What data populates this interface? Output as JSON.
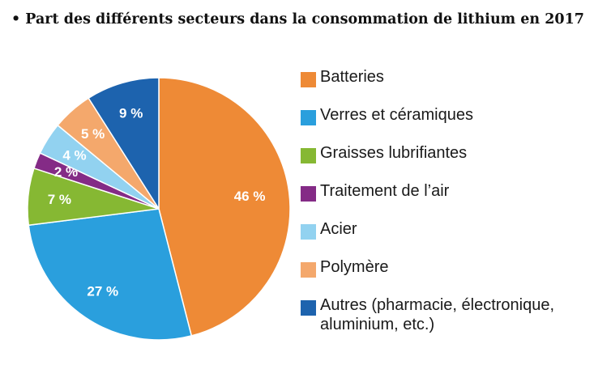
{
  "title": "• Part des différents secteurs dans la consommation de lithium en 2017",
  "chart_data": {
    "type": "pie",
    "title": "• Part des différents secteurs dans la consommation de lithium en 2017",
    "unit": "%",
    "legend_position": "right",
    "slices": [
      {
        "name": "Batteries",
        "value": 46,
        "label": "46 %",
        "color": "#EE8A36"
      },
      {
        "name": "Verres et céramiques",
        "value": 27,
        "label": "27 %",
        "color": "#2A9FDD"
      },
      {
        "name": "Graisses lubrifiantes",
        "value": 7,
        "label": "7 %",
        "color": "#86B833"
      },
      {
        "name": "Traitement de l’air",
        "value": 2,
        "label": "2 %",
        "color": "#842B86"
      },
      {
        "name": "Acier",
        "value": 4,
        "label": "4 %",
        "color": "#92D2F0"
      },
      {
        "name": "Polymère",
        "value": 5,
        "label": "5 %",
        "color": "#F4A86C"
      },
      {
        "name": "Autres (pharmacie, électronique, aluminium, etc.)",
        "value": 9,
        "label": "9 %",
        "color": "#1D63AE"
      }
    ]
  }
}
